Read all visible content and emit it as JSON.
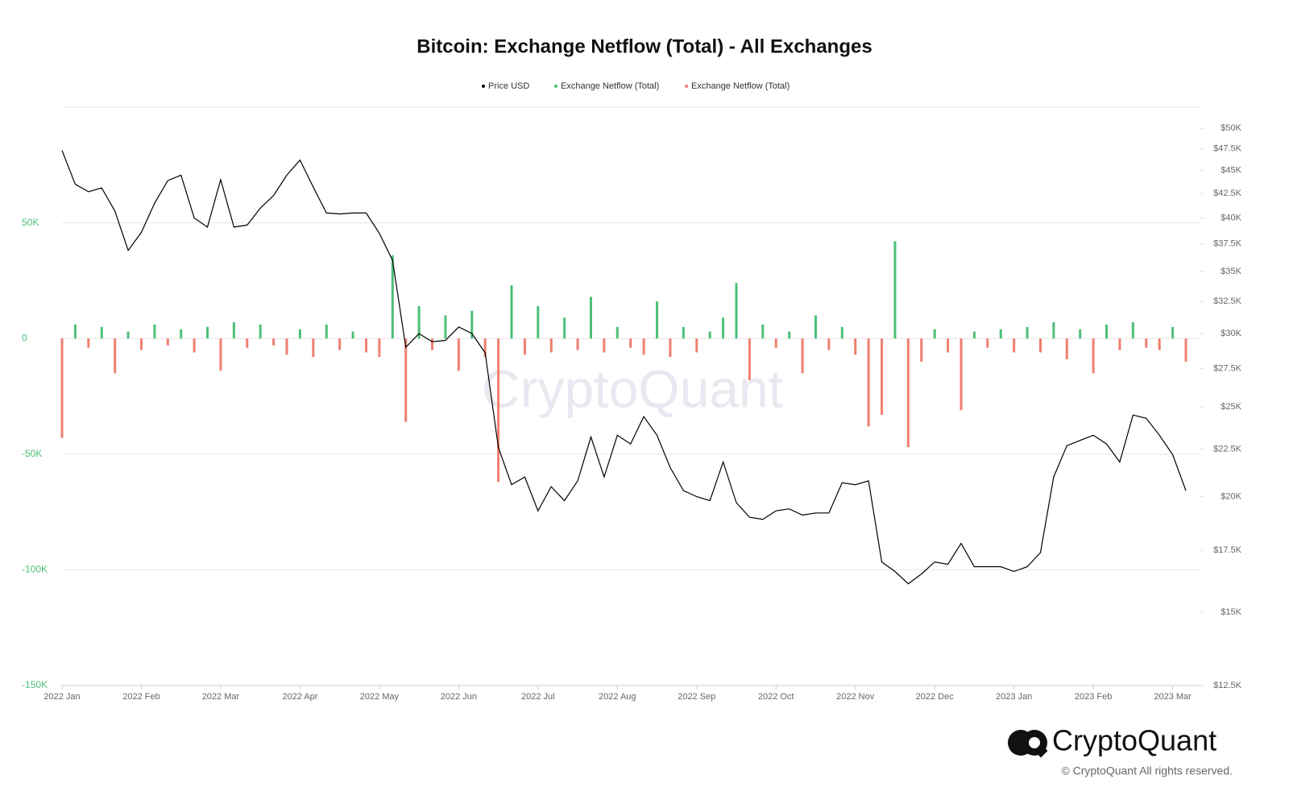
{
  "chart_data": {
    "type": "bar-line",
    "title": "Bitcoin: Exchange Netflow (Total) - All Exchanges",
    "watermark": "CryptoQuant",
    "brand": "CryptoQuant",
    "copyright": "© CryptoQuant All rights reserved.",
    "categories": [
      "2022 Jan",
      null,
      null,
      null,
      null,
      null,
      "2022 Feb",
      null,
      null,
      null,
      null,
      null,
      "2022 Mar",
      null,
      null,
      null,
      null,
      null,
      "2022 Apr",
      null,
      null,
      null,
      null,
      null,
      "2022 May",
      null,
      null,
      null,
      null,
      null,
      "2022 Jun",
      null,
      null,
      null,
      null,
      null,
      "2022 Jul",
      null,
      null,
      null,
      null,
      null,
      "2022 Aug",
      null,
      null,
      null,
      null,
      null,
      "2022 Sep",
      null,
      null,
      null,
      null,
      null,
      "2022 Oct",
      null,
      null,
      null,
      null,
      null,
      "2022 Nov",
      null,
      null,
      null,
      null,
      null,
      "2022 Dec",
      null,
      null,
      null,
      null,
      null,
      "2023 Jan",
      null,
      null,
      null,
      null,
      null,
      "2023 Feb",
      null,
      null,
      null,
      null,
      null,
      "2023 Mar",
      null
    ],
    "series": [
      {
        "name": "Price USD",
        "color": "#000000",
        "type": "line",
        "axis": "y2",
        "values": [
          47300,
          43500,
          42700,
          43100,
          40700,
          36900,
          38600,
          41500,
          43900,
          44500,
          40000,
          39100,
          44000,
          39100,
          39300,
          41000,
          42300,
          44500,
          46200,
          43200,
          40500,
          40400,
          40500,
          40500,
          38500,
          36000,
          29000,
          30000,
          29400,
          29500,
          30500,
          30000,
          28600,
          22600,
          20600,
          21000,
          19300,
          20500,
          19800,
          20800,
          23200,
          21000,
          23300,
          22800,
          24400,
          23300,
          21500,
          20300,
          20000,
          19800,
          21800,
          19700,
          19000,
          18900,
          19300,
          19400,
          19100,
          19200,
          19200,
          20700,
          20600,
          20800,
          17000,
          16600,
          16100,
          16500,
          17000,
          16900,
          17800,
          16800,
          16800,
          16800,
          16600,
          16800,
          17400,
          21000,
          22700,
          23000,
          23300,
          22800,
          21800,
          24500,
          24300,
          23300,
          22200,
          20300
        ]
      },
      {
        "name": "Exchange Netflow (Total)",
        "color": "#4cbf78",
        "type": "bar",
        "values": [
          null,
          6000,
          null,
          5000,
          null,
          3000,
          null,
          6000,
          null,
          4000,
          null,
          5000,
          null,
          7000,
          null,
          6000,
          null,
          null,
          4000,
          null,
          6000,
          null,
          3000,
          null,
          null,
          36000,
          null,
          14000,
          null,
          10000,
          null,
          12000,
          null,
          null,
          23000,
          null,
          14000,
          null,
          9000,
          null,
          18000,
          null,
          5000,
          null,
          null,
          16000,
          null,
          5000,
          null,
          3000,
          9000,
          24000,
          null,
          6000,
          null,
          3000,
          null,
          10000,
          null,
          5000,
          null,
          null,
          null,
          42000,
          null,
          null,
          4000,
          null,
          null,
          3000,
          null,
          4000,
          null,
          5000,
          null,
          7000,
          null,
          4000,
          null,
          6000,
          null,
          7000,
          null,
          null,
          5000,
          null
        ]
      },
      {
        "name": "Exchange Netflow (Total)",
        "color": "#ef7f6e",
        "type": "bar",
        "values": [
          -43000,
          null,
          -4000,
          null,
          -15000,
          null,
          -5000,
          null,
          -3000,
          null,
          -6000,
          null,
          -14000,
          null,
          -4000,
          null,
          -3000,
          -7000,
          null,
          -8000,
          null,
          -5000,
          null,
          -6000,
          -8000,
          null,
          -36000,
          null,
          -5000,
          null,
          -14000,
          null,
          -8000,
          -62000,
          null,
          -7000,
          null,
          -6000,
          null,
          -5000,
          null,
          -6000,
          null,
          -4000,
          -7000,
          null,
          -8000,
          null,
          -6000,
          null,
          null,
          null,
          -18000,
          null,
          -4000,
          null,
          -15000,
          null,
          -5000,
          null,
          -7000,
          -38000,
          -33000,
          null,
          -47000,
          -10000,
          null,
          -6000,
          -31000,
          null,
          -4000,
          null,
          -6000,
          null,
          -6000,
          null,
          -9000,
          null,
          -15000,
          null,
          -5000,
          null,
          -4000,
          -5000,
          null,
          -10000
        ]
      }
    ],
    "ylim": [
      -150000,
      100000
    ],
    "yticks": [
      {
        "value": 50000,
        "label": "50K"
      },
      0,
      {
        "value": -50000,
        "label": "-50K"
      },
      {
        "value": -100000,
        "label": "-100K"
      },
      {
        "value": -150000,
        "label": "-150K"
      }
    ],
    "y2lim": [
      12500,
      52700
    ],
    "y2scale": "log",
    "y2ticks": [
      {
        "value": 12500,
        "label": "$12.5K"
      },
      {
        "value": 15000,
        "label": "$15K"
      },
      {
        "value": 17500,
        "label": "$17.5K"
      },
      {
        "value": 20000,
        "label": "$20K"
      },
      {
        "value": 22500,
        "label": "$22.5K"
      },
      {
        "value": 25000,
        "label": "$25K"
      },
      {
        "value": 27500,
        "label": "$27.5K"
      },
      {
        "value": 30000,
        "label": "$30K"
      },
      {
        "value": 32500,
        "label": "$32.5K"
      },
      {
        "value": 35000,
        "label": "$35K"
      },
      {
        "value": 37500,
        "label": "$37.5K"
      },
      {
        "value": 40000,
        "label": "$40K"
      },
      {
        "value": 42500,
        "label": "$42.5K"
      },
      {
        "value": 45000,
        "label": "$45K"
      },
      {
        "value": 47500,
        "label": "$47.5K"
      },
      {
        "value": 50000,
        "label": "$50K"
      }
    ],
    "grid": true,
    "legend": "top",
    "ytick_color": "#4cbf78"
  }
}
